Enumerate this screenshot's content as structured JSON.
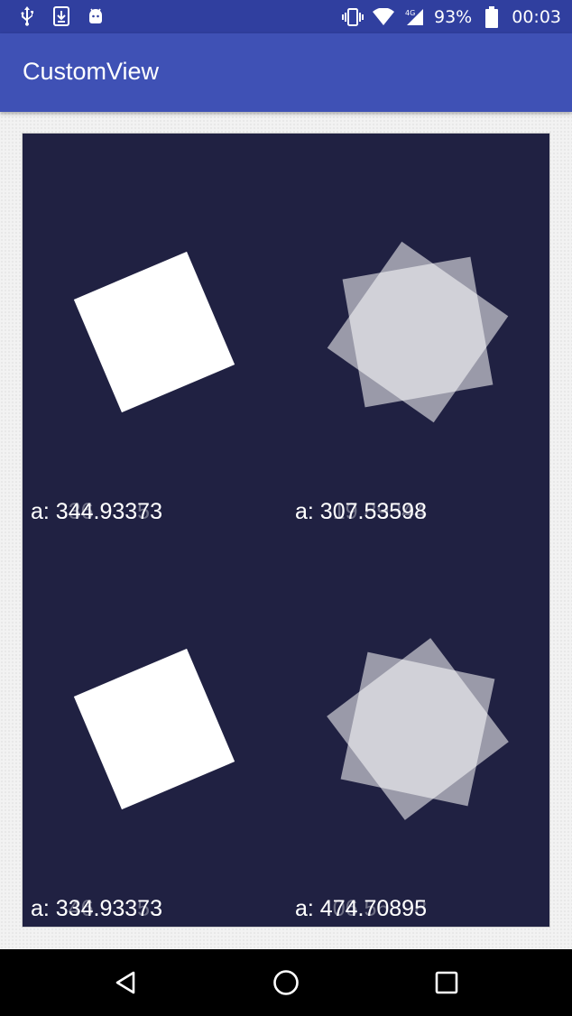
{
  "status_bar": {
    "left_icons": [
      "usb-icon",
      "download-icon",
      "android-icon"
    ],
    "right_icons": [
      "vibrate-icon",
      "wifi-icon",
      "signal-4g-icon"
    ],
    "battery_percent": "93%",
    "time": "00:03"
  },
  "app_bar": {
    "title": "CustomView"
  },
  "panels": [
    {
      "label": "a: 344.93373",
      "ghost": "a: 336.93353"
    },
    {
      "label": "a: 307.53598",
      "ghost": "a: 319.89344"
    },
    {
      "label": "a: 334.93373",
      "ghost": "a: 346.93353"
    },
    {
      "label": "a: 474.70895",
      "ghost": "a: 406.56398"
    }
  ],
  "colors": {
    "status_bar": "#303F9F",
    "app_bar": "#3F51B5",
    "canvas": "#202142"
  },
  "nav_bar": {
    "buttons": [
      "back-icon",
      "home-icon",
      "recents-icon"
    ]
  }
}
